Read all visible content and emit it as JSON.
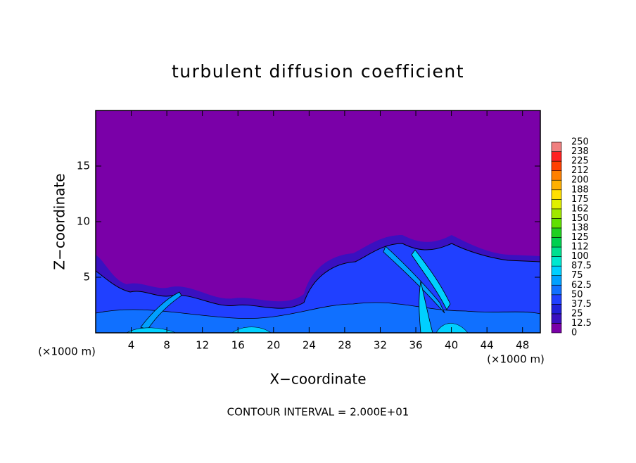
{
  "chart_data": {
    "type": "contour",
    "title": "turbulent diffusion coefficient",
    "x_label": "X−coordinate",
    "y_label": "Z−coordinate",
    "x_unit": "(×1000 m)",
    "y_unit": "(×1000 m)",
    "footer": "CONTOUR INTERVAL = 2.000E+01",
    "xlim": [
      0,
      50
    ],
    "ylim": [
      0,
      20
    ],
    "xticks": [
      4,
      8,
      12,
      16,
      20,
      24,
      28,
      32,
      36,
      40,
      44,
      48
    ],
    "yticks": [
      5,
      10,
      15
    ],
    "colorbar": {
      "clim": [
        0,
        250
      ],
      "levels": [
        0,
        12.5,
        25,
        37.5,
        50,
        62.5,
        75,
        87.5,
        100,
        {
          "value": 112.5,
          "label": "112"
        },
        125,
        {
          "value": 137.5,
          "label": "138"
        },
        150,
        {
          "value": 162.5,
          "label": "162"
        },
        175,
        {
          "value": 187.5,
          "label": "188"
        },
        200,
        {
          "value": 212.5,
          "label": "212"
        },
        225,
        {
          "value": 237.5,
          "label": "238"
        },
        250
      ],
      "colors": [
        "#7a00a8",
        "#3a10c0",
        "#2020d8",
        "#2040ff",
        "#1070ff",
        "#00a0ff",
        "#00d0ff",
        "#00e8d0",
        "#00e090",
        "#00d050",
        "#20d020",
        "#60e000",
        "#a0e800",
        "#e0f000",
        "#ffe000",
        "#ffb000",
        "#ff8000",
        "#ff4000",
        "#ff2020",
        "#f08080"
      ]
    }
  }
}
